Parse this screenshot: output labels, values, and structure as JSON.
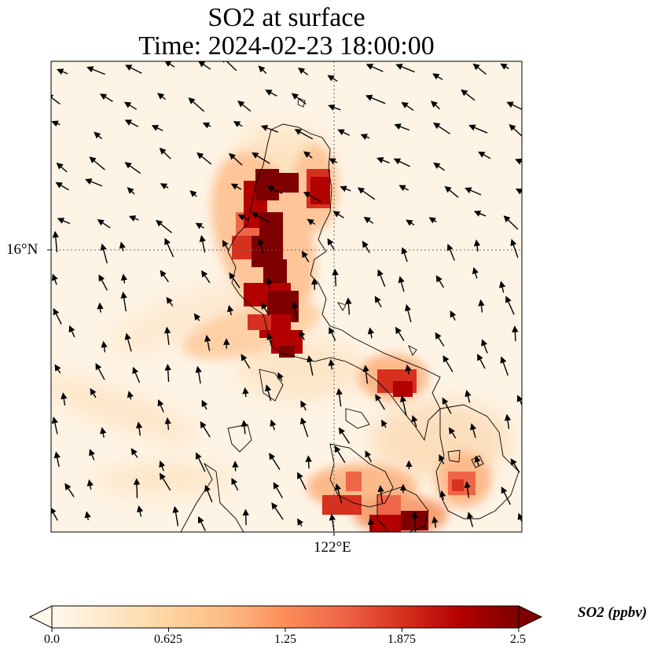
{
  "title_line1": "SO2 at surface",
  "title_line2": "Time: 2024-02-23 18:00:00",
  "axes": {
    "lat_tick_label": "16°N",
    "lon_tick_label": "122°E"
  },
  "colorbar": {
    "label": "SO2 (ppbv)",
    "tick_labels": [
      "0.0",
      "0.625",
      "1.25",
      "1.875",
      "2.5"
    ],
    "vmin": 0.0,
    "vmax": 2.5,
    "colormap": "OrRd",
    "extend": "both",
    "colors": [
      "#fff7ec",
      "#fee8c8",
      "#fdd49e",
      "#fdbb84",
      "#fc8d59",
      "#ef6548",
      "#d7301f",
      "#b30000",
      "#7f0000"
    ]
  },
  "chart_data": {
    "type": "heatmap",
    "variable": "SO2",
    "units": "ppbv",
    "level": "surface",
    "time": "2024-02-23 18:00:00",
    "gridlines": {
      "latitude": [
        16
      ],
      "longitude": [
        122
      ]
    },
    "plumes": [
      {
        "lon": 120.8,
        "lat": 16.5,
        "value": 2.5
      },
      {
        "lon": 121.0,
        "lat": 16.2,
        "value": 2.5
      },
      {
        "lon": 121.2,
        "lat": 15.7,
        "value": 2.5
      },
      {
        "lon": 121.4,
        "lat": 15.3,
        "value": 2.4
      },
      {
        "lon": 121.7,
        "lat": 16.4,
        "value": 2.3
      },
      {
        "lon": 120.5,
        "lat": 15.9,
        "value": 1.2
      },
      {
        "lon": 122.5,
        "lat": 14.8,
        "value": 2.0
      },
      {
        "lon": 122.0,
        "lat": 13.9,
        "value": 1.8
      },
      {
        "lon": 122.6,
        "lat": 13.7,
        "value": 2.4
      },
      {
        "lon": 123.3,
        "lat": 13.9,
        "value": 1.5
      }
    ],
    "wind_vectors": "present"
  }
}
